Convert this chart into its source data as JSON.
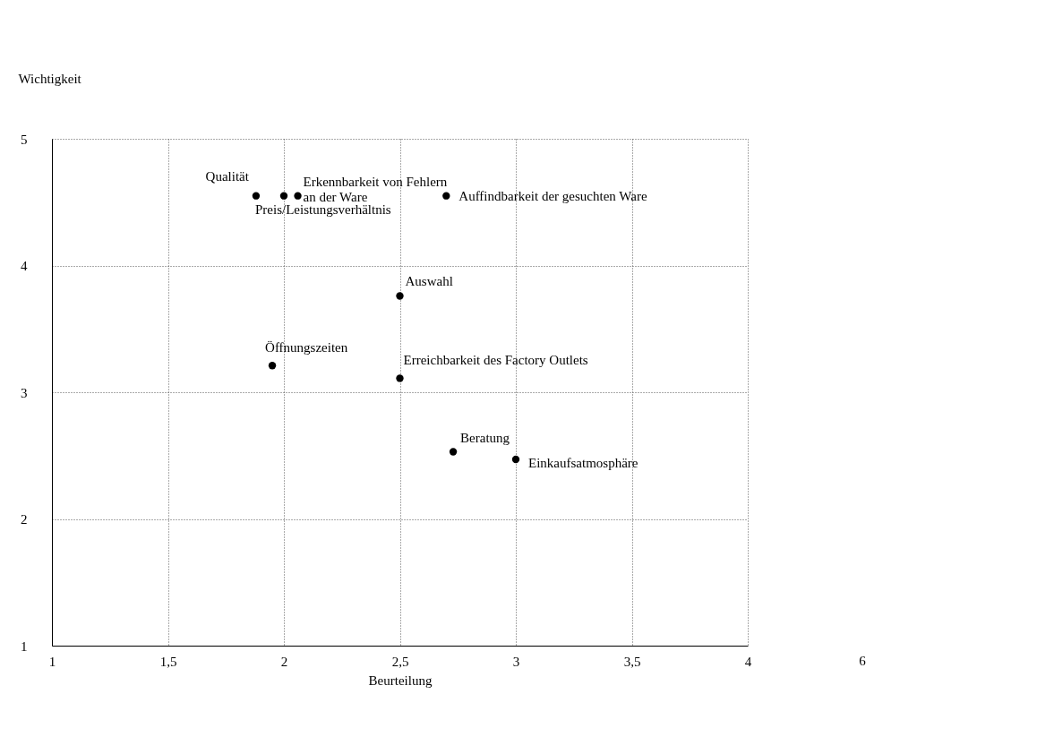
{
  "chart_data": {
    "type": "scatter",
    "xlabel": "Beurteilung",
    "ylabel": "Wichtigkeit",
    "x": [
      1.88,
      2.0,
      2.06,
      2.7,
      2.5,
      1.95,
      2.5,
      2.73,
      3.0
    ],
    "series": [
      {
        "color": "#000000",
        "values": [
          4.55,
          4.55,
          4.55,
          4.55,
          3.76,
          3.21,
          3.11,
          2.53,
          2.47
        ]
      }
    ],
    "marker": "circle",
    "xlim": [
      1,
      4
    ],
    "xticks": [
      1,
      {
        "value": 1.5,
        "label": "1,5"
      },
      2,
      {
        "value": 2.5,
        "label": "2,5"
      },
      3,
      {
        "value": 3.5,
        "label": "3,5"
      },
      4
    ],
    "ylim": [
      1,
      5
    ],
    "yticks": [
      1,
      2,
      3,
      4,
      5
    ],
    "grid": true,
    "annotations": [
      {
        "text": "Qualität",
        "x": 1.88,
        "y": 4.55
      },
      {
        "text": "Preis/Leistungsverhältnis",
        "x": 2.0,
        "y": 4.55
      },
      {
        "text": "Erkennbarkeit von Fehlern\nan  der Ware",
        "x": 2.06,
        "y": 4.55
      },
      {
        "text": "Auffindbarkeit der gesuchten Ware",
        "x": 2.7,
        "y": 4.55
      },
      {
        "text": "Auswahl",
        "x": 2.5,
        "y": 3.76
      },
      {
        "text": "Öffnungszeiten",
        "x": 1.95,
        "y": 3.21
      },
      {
        "text": "Erreichbarkeit des Factory Outlets",
        "x": 2.5,
        "y": 3.11
      },
      {
        "text": "Beratung",
        "x": 2.73,
        "y": 2.53
      },
      {
        "text": "Einkaufsatmosphäre",
        "x": 3.0,
        "y": 2.47
      },
      "6"
    ]
  }
}
